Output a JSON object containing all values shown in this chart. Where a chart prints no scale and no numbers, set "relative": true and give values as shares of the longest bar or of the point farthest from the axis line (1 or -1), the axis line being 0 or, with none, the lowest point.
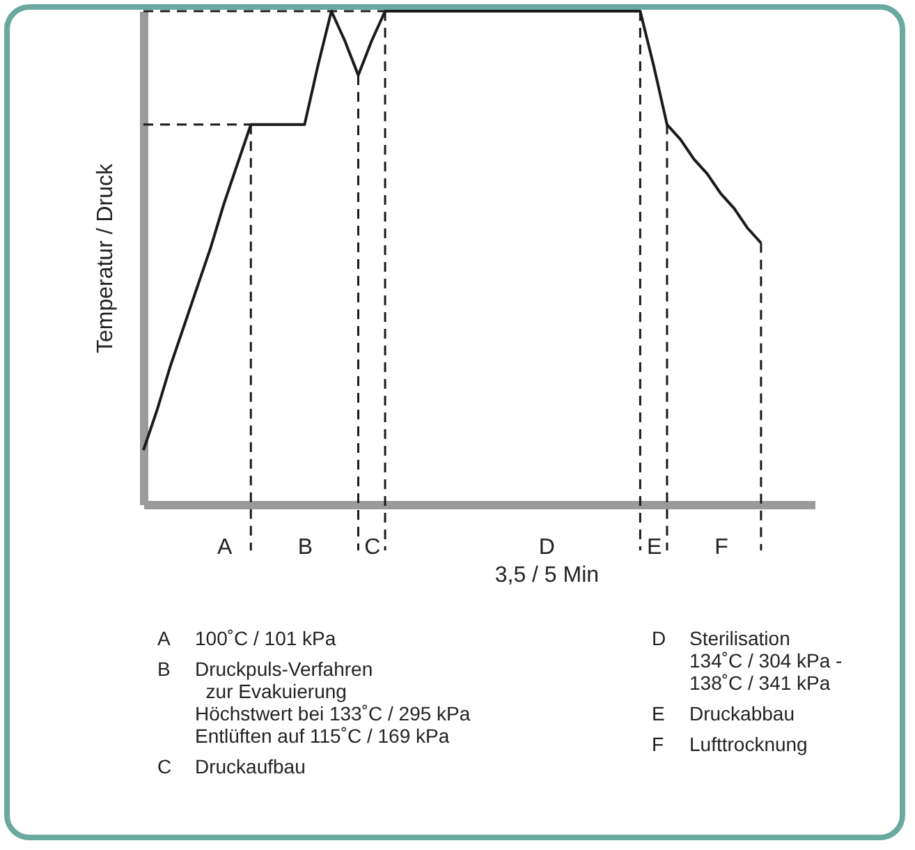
{
  "chart_data": {
    "type": "line",
    "relative": true,
    "ylabel": "Temperatur / Druck",
    "categories": [
      null,
      null,
      null,
      null,
      null,
      null,
      "A",
      null,
      null,
      null,
      null,
      null,
      "B",
      null,
      null,
      null,
      null,
      "C",
      null,
      null,
      null,
      null,
      null,
      null,
      null,
      null,
      null,
      null,
      null,
      null,
      "D\n3,5 / 5 Min",
      null,
      null,
      null,
      null,
      null,
      null,
      null,
      "E",
      null,
      null,
      null,
      null,
      "F",
      null,
      null,
      null,
      null,
      null,
      null,
      null
    ],
    "series": [
      {
        "color": "#1a1a1a",
        "values": [
          0.11,
          0.19,
          0.28,
          0.36,
          0.44,
          0.52,
          0.61,
          0.69,
          0.77,
          0.77,
          0.77,
          0.77,
          0.77,
          0.89,
          1,
          0.94,
          0.87,
          0.94,
          1,
          1,
          1,
          1,
          1,
          1,
          1,
          1,
          1,
          1,
          1,
          1,
          1,
          1,
          1,
          1,
          1,
          1,
          1,
          1,
          0.89,
          0.77,
          0.74,
          0.7,
          0.67,
          0.63,
          0.6,
          0.56,
          0.53,
          null,
          null,
          null,
          null
        ]
      }
    ],
    "ref_lines": [
      {
        "axis": "y",
        "value": 0.77,
        "line_style": "dashed"
      },
      {
        "axis": "y",
        "value": 1,
        "line_style": "dashed"
      }
    ],
    "annotations": [
      "A 100˚C / 101 kPa",
      "B Druckpuls-Verfahren\n  zur Evakuierung\nHöchstwert bei 133˚C / 295 kPa\nEntlüften auf 115˚C / 169 kPa",
      "C Druckaufbau",
      "D Sterilisation\n134˚C / 304 kPa -\n138˚C / 341 kPa",
      "E Druckabbau",
      "F Lufttrocknung"
    ]
  }
}
